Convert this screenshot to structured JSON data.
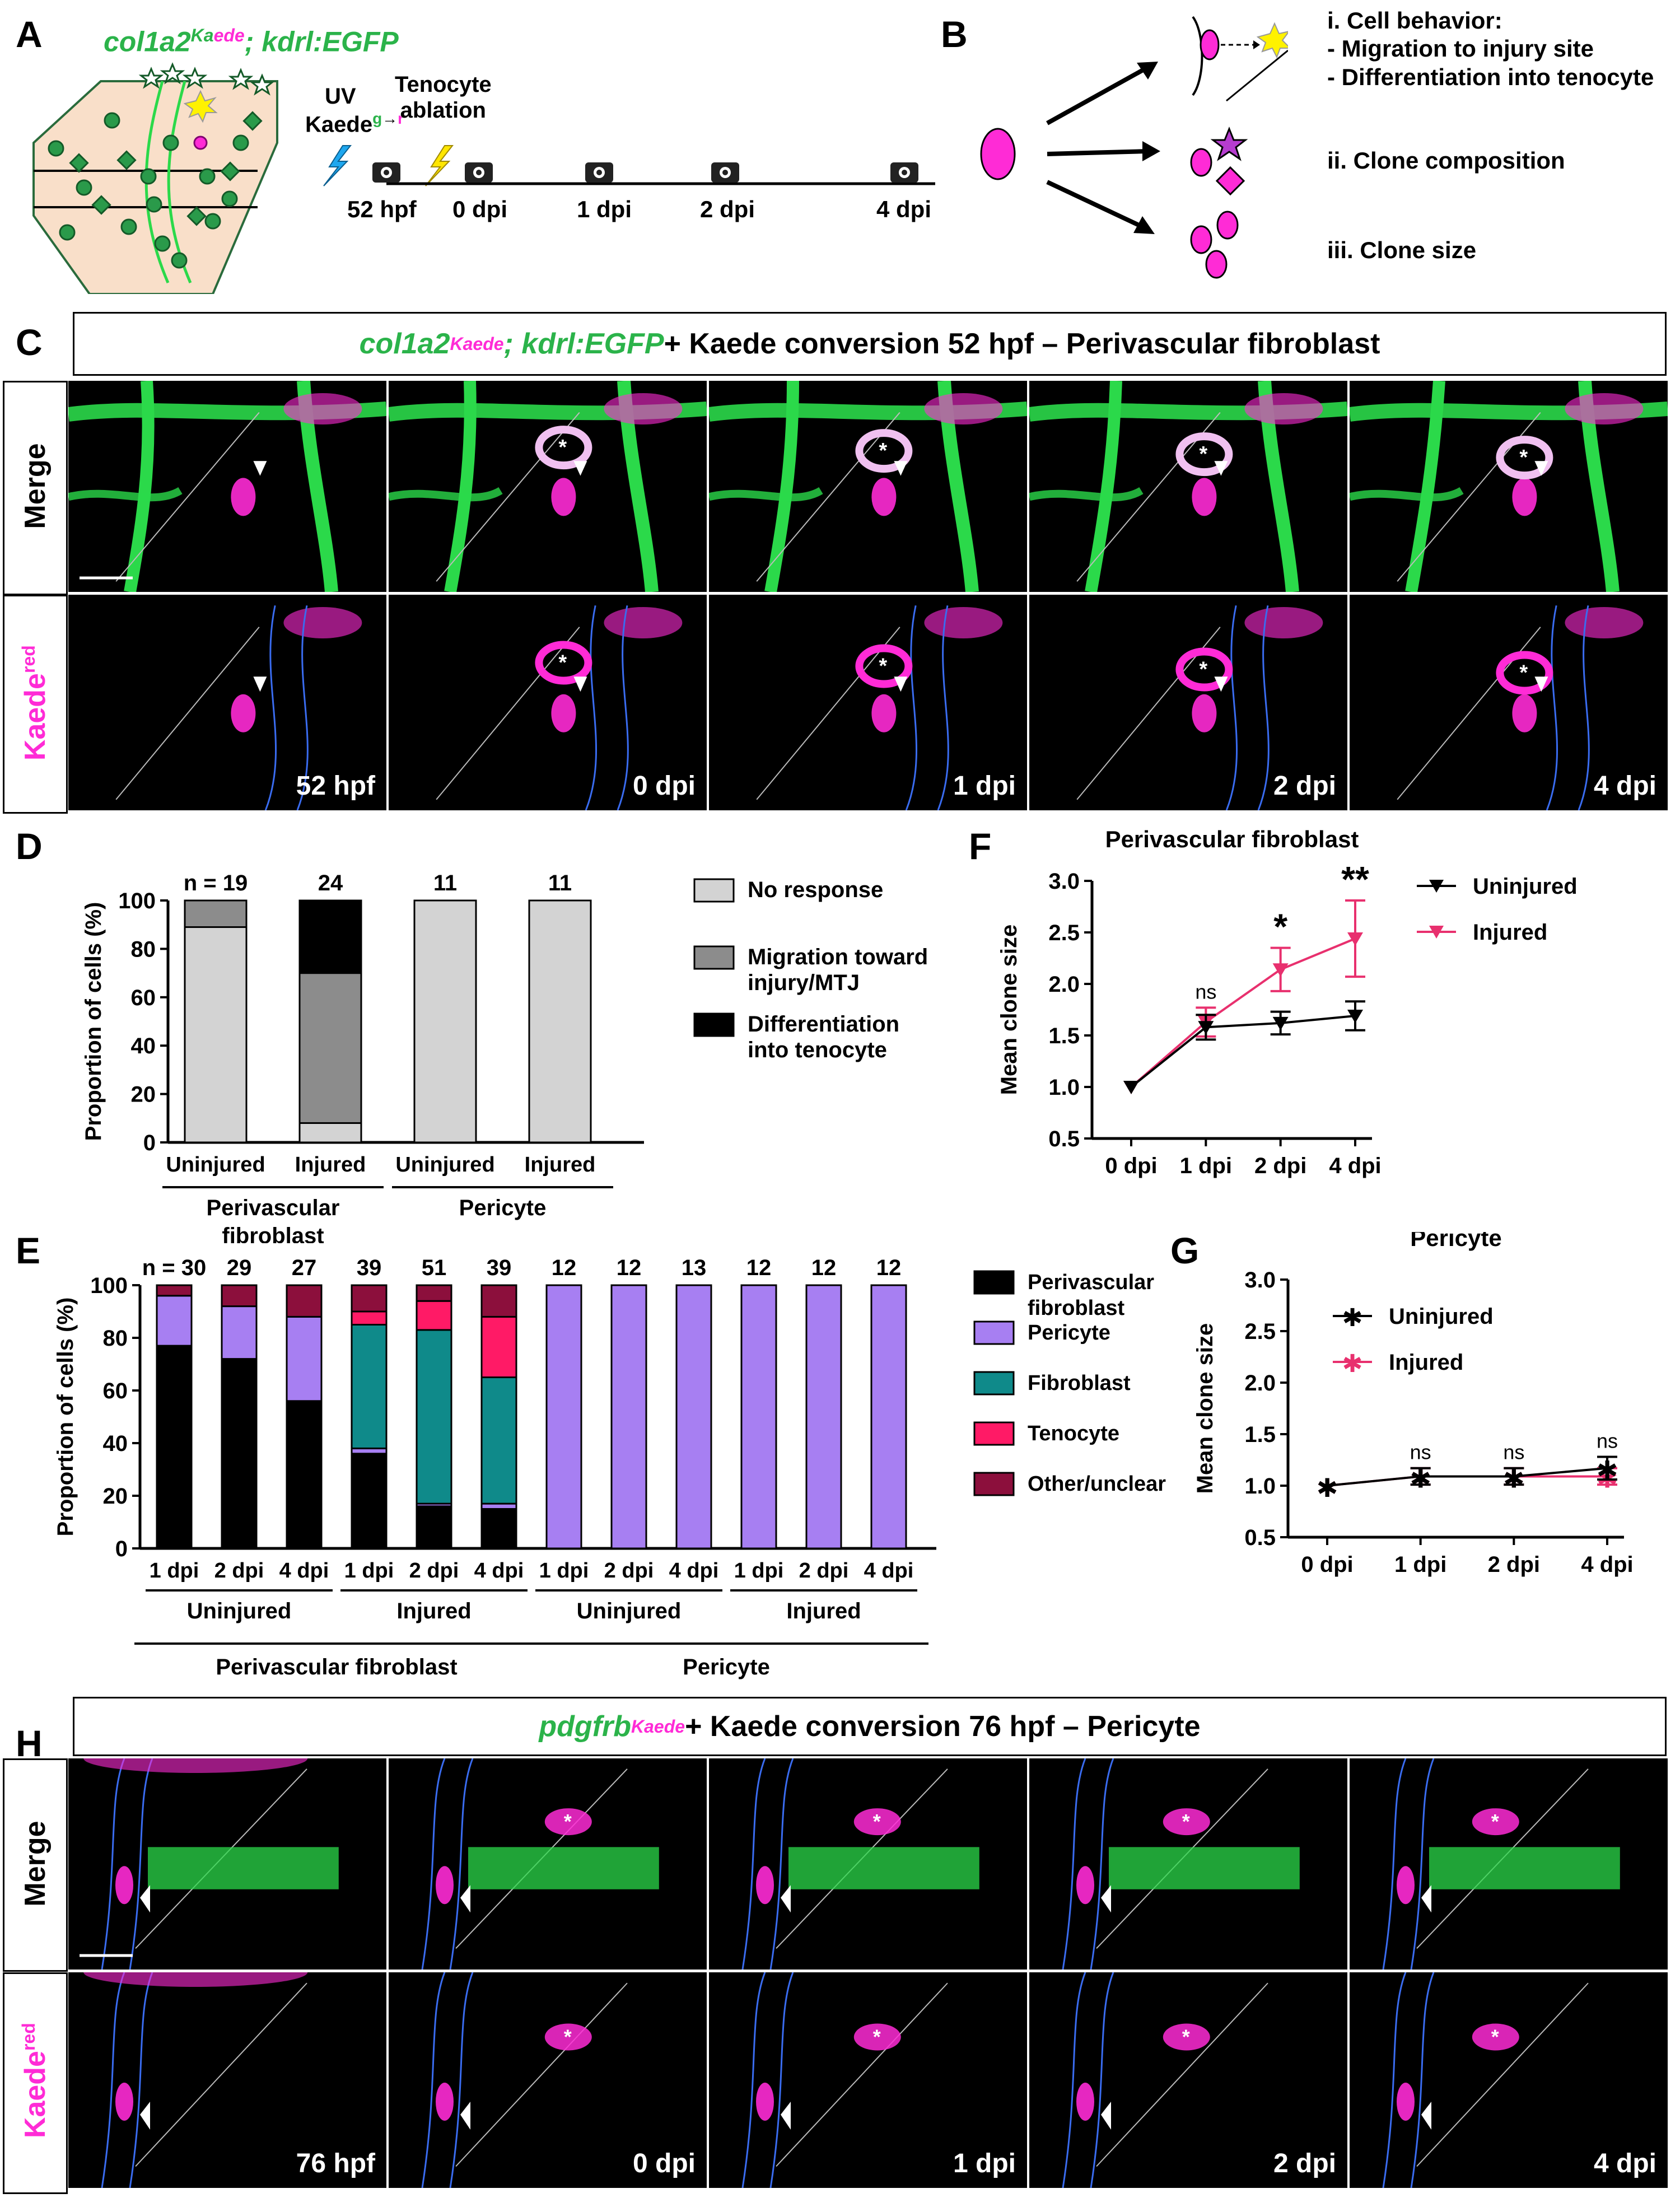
{
  "panels": {
    "A": "A",
    "B": "B",
    "C": "C",
    "D": "D",
    "E": "E",
    "F": "F",
    "G": "G",
    "H": "H"
  },
  "panelA": {
    "line_title_part1": "col1a2",
    "line_title_sup": "Ka",
    "line_title_sup2": "ede",
    "line_title_part2": "; kdrl:EGFP",
    "uv_label": "UV",
    "kaede_label": "Kaede",
    "kaede_g": "g",
    "kaede_arrow": "→",
    "kaede_r": "r",
    "ablation_label1": "Tenocyte",
    "ablation_label2": "ablation",
    "timepoints": [
      "52 hpf",
      "0 dpi",
      "1 dpi",
      "2 dpi",
      "4 dpi"
    ]
  },
  "panelB": {
    "behavior_title": "i. Cell behavior:",
    "behavior_item1": "- Migration to injury site",
    "behavior_item2": "- Differentiation into tenocyte",
    "composition": "ii. Clone composition",
    "size": "iii. Clone size"
  },
  "panelC": {
    "title_line": "col1a2",
    "title_sup": "Kaede",
    "title_rest1": "; kdrl:EGFP",
    "title_rest2": " + Kaede conversion 52 hpf – Perivascular fibroblast",
    "row_merge": "Merge",
    "row_kaede": "Kaede",
    "row_kaede_sup": "red",
    "timepoints": [
      "52 hpf",
      "0 dpi",
      "1 dpi",
      "2 dpi",
      "4 dpi"
    ]
  },
  "panelH": {
    "title_line": "pdgfrb",
    "title_sup": "Kaede",
    "title_rest": " + Kaede conversion 76 hpf – Pericyte",
    "row_merge": "Merge",
    "row_kaede": "Kaede",
    "row_kaede_sup": "red",
    "timepoints": [
      "76 hpf",
      "0 dpi",
      "1 dpi",
      "2 dpi",
      "4 dpi"
    ]
  },
  "colors": {
    "no_response": "#d3d3d3",
    "migration": "#8c8c8c",
    "differentiation": "#000000",
    "perivascular": "#000000",
    "pericyte": "#a77ff2",
    "fibroblast": "#0f8a8a",
    "tenocyte": "#ff1a66",
    "other": "#8c0f3c",
    "uninjured": "#000000",
    "injured": "#e8306e",
    "kaede": "#ff2bd6",
    "egfp": "#2bd94a"
  },
  "chart_data": [
    {
      "id": "D",
      "type": "bar",
      "stacked": true,
      "ylabel": "Proportion of cells (%)",
      "ylim": [
        0,
        100
      ],
      "yticks": [
        "0",
        "20",
        "40",
        "60",
        "80",
        "100"
      ],
      "categories": [
        "Uninjured",
        "Injured",
        "Uninjured",
        "Injured"
      ],
      "n_labels": [
        "n = 19",
        "24",
        "11",
        "11"
      ],
      "group_labels": [
        "Perivascular fibroblast",
        "Pericyte"
      ],
      "series": [
        {
          "name": "No response",
          "values": [
            89,
            8,
            100,
            100
          ]
        },
        {
          "name": "Migration toward injury/MTJ",
          "values": [
            11,
            62,
            0,
            0
          ]
        },
        {
          "name": "Differentiation into tenocyte",
          "values": [
            0,
            30,
            0,
            0
          ]
        }
      ]
    },
    {
      "id": "E",
      "type": "bar",
      "stacked": true,
      "ylabel": "Proportion of cells (%)",
      "ylim": [
        0,
        100
      ],
      "yticks": [
        "0",
        "20",
        "40",
        "60",
        "80",
        "100"
      ],
      "categories": [
        "1 dpi",
        "2 dpi",
        "4 dpi",
        "1 dpi",
        "2 dpi",
        "4 dpi",
        "1 dpi",
        "2 dpi",
        "4 dpi",
        "1 dpi",
        "2 dpi",
        "4 dpi"
      ],
      "n_labels": [
        "n = 30",
        "29",
        "27",
        "39",
        "51",
        "39",
        "12",
        "12",
        "13",
        "12",
        "12",
        "12"
      ],
      "subgroup_labels": [
        "Uninjured",
        "Injured",
        "Uninjured",
        "Injured"
      ],
      "group_labels": [
        "Perivascular fibroblast",
        "Pericyte"
      ],
      "series": [
        {
          "name": "Perivascular fibroblast",
          "values": [
            77,
            72,
            56,
            36,
            16,
            15,
            0,
            0,
            0,
            0,
            0,
            0
          ]
        },
        {
          "name": "Pericyte",
          "values": [
            19,
            20,
            32,
            2,
            1,
            2,
            100,
            100,
            100,
            100,
            100,
            100
          ]
        },
        {
          "name": "Fibroblast",
          "values": [
            0,
            0,
            0,
            47,
            66,
            48,
            0,
            0,
            0,
            0,
            0,
            0
          ]
        },
        {
          "name": "Tenocyte",
          "values": [
            0,
            0,
            0,
            5,
            11,
            23,
            0,
            0,
            0,
            0,
            0,
            0
          ]
        },
        {
          "name": "Other/unclear",
          "values": [
            4,
            8,
            12,
            10,
            6,
            12,
            0,
            0,
            0,
            0,
            0,
            0
          ]
        }
      ],
      "extra_series_pericyte_top": [
        0,
        0,
        0,
        1,
        1,
        1,
        0,
        0,
        0,
        0,
        0,
        0
      ]
    },
    {
      "id": "F",
      "type": "line",
      "title": "Perivascular fibroblast",
      "ylabel": "Mean clone size",
      "ylim": [
        0.5,
        3.0
      ],
      "yticks": [
        "0.5",
        "1.0",
        "1.5",
        "2.0",
        "2.5",
        "3.0"
      ],
      "categories": [
        "0 dpi",
        "1 dpi",
        "2 dpi",
        "4 dpi"
      ],
      "significance": [
        "",
        "ns",
        "*",
        "**"
      ],
      "series": [
        {
          "name": "Uninjured",
          "values": [
            1.0,
            1.58,
            1.62,
            1.69
          ],
          "err": [
            0,
            0.12,
            0.11,
            0.14
          ]
        },
        {
          "name": "Injured",
          "values": [
            1.0,
            1.63,
            2.14,
            2.44
          ],
          "err": [
            0,
            0.14,
            0.21,
            0.37
          ]
        }
      ]
    },
    {
      "id": "G",
      "type": "line",
      "title": "Pericyte",
      "ylabel": "Mean clone size",
      "ylim": [
        0.5,
        3.0
      ],
      "yticks": [
        "0.5",
        "1.0",
        "1.5",
        "2.0",
        "2.5",
        "3.0"
      ],
      "categories": [
        "0 dpi",
        "1 dpi",
        "2 dpi",
        "4 dpi"
      ],
      "significance": [
        "",
        "ns",
        "ns",
        "ns"
      ],
      "series": [
        {
          "name": "Uninjured",
          "values": [
            1.0,
            1.09,
            1.09,
            1.17
          ],
          "err": [
            0,
            0.08,
            0.08,
            0.11
          ]
        },
        {
          "name": "Injured",
          "values": [
            1.0,
            1.09,
            1.09,
            1.09
          ],
          "err": [
            0,
            0.08,
            0.08,
            0.08
          ]
        }
      ]
    }
  ]
}
